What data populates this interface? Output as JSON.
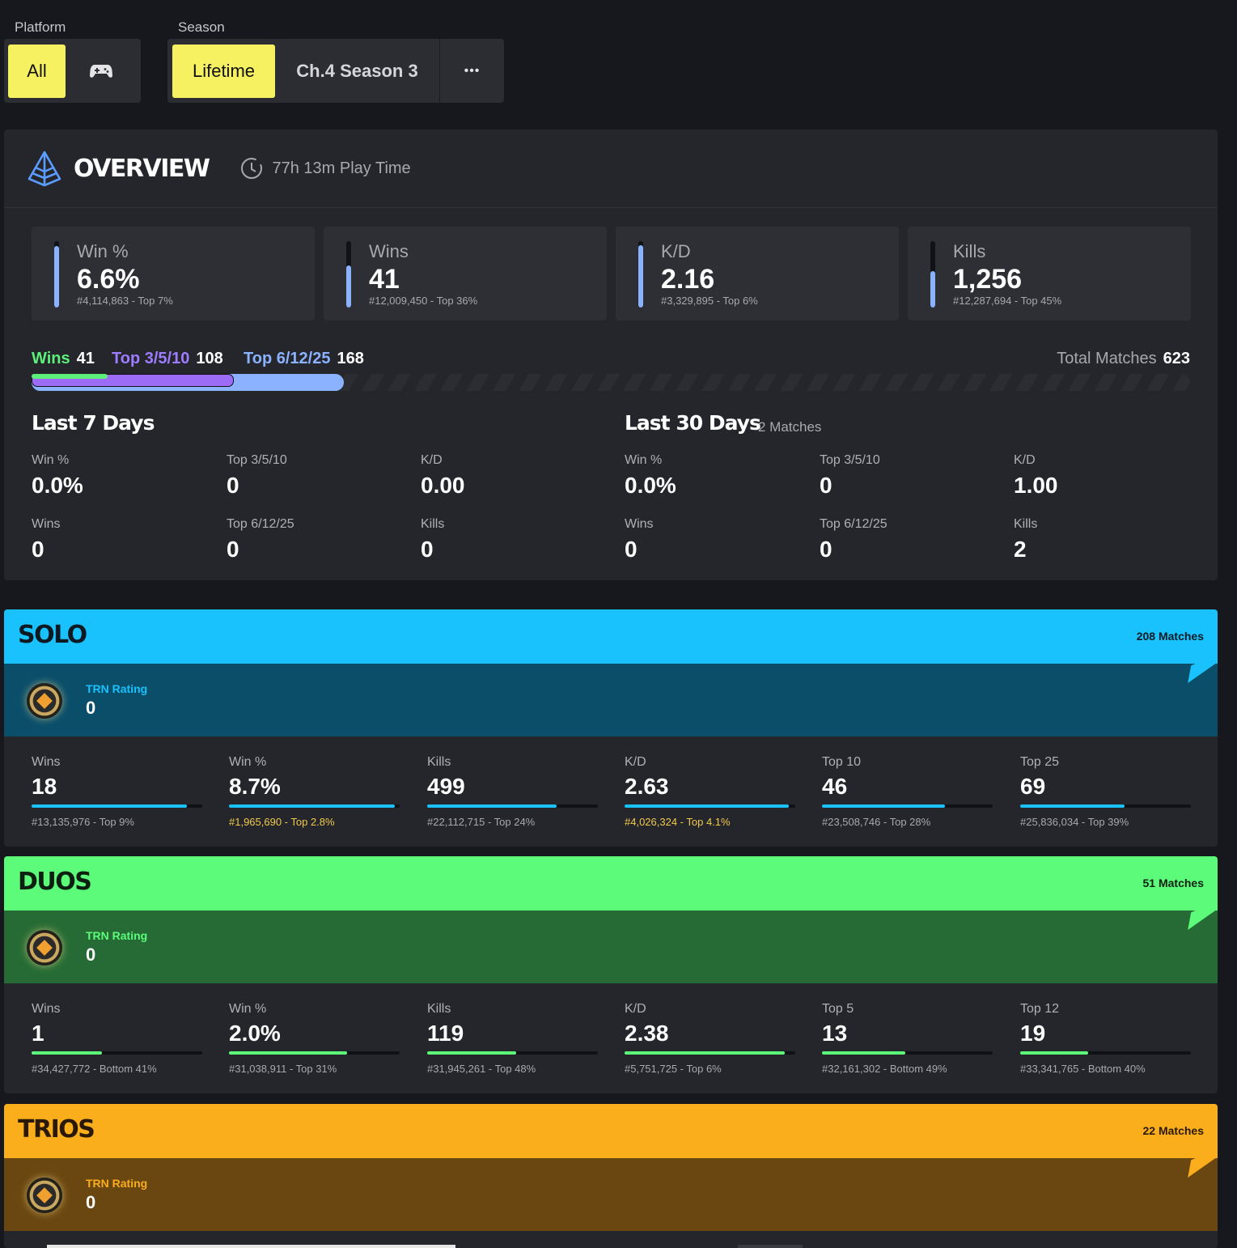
{
  "filters": {
    "platform_label": "Platform",
    "platform_all": "All",
    "platform_icon": "gamepad-icon",
    "season_label": "Season",
    "season_lifetime": "Lifetime",
    "season_current": "Ch.4 Season 3",
    "season_more": "•••"
  },
  "overview": {
    "title": "OVERVIEW",
    "playtime": "77h 13m Play Time",
    "cards": [
      {
        "label": "Win %",
        "value": "6.6%",
        "rank": "#4,114,863 - Top 7%",
        "fill": 0.93
      },
      {
        "label": "Wins",
        "value": "41",
        "rank": "#12,009,450 - Top 36%",
        "fill": 0.64
      },
      {
        "label": "K/D",
        "value": "2.16",
        "rank": "#3,329,895 - Top 6%",
        "fill": 0.94
      },
      {
        "label": "Kills",
        "value": "1,256",
        "rank": "#12,287,694 - Top 45%",
        "fill": 0.55
      }
    ],
    "placements": {
      "wins_label": "Wins",
      "wins_value": "41",
      "top3_label": "Top 3/5/10",
      "top3_value": "108",
      "top6_label": "Top 6/12/25",
      "top6_value": "168",
      "total_label": "Total Matches",
      "total_value": "623"
    },
    "last7": {
      "title": "Last 7 Days",
      "stats": [
        {
          "label": "Win %",
          "value": "0.0%"
        },
        {
          "label": "Top 3/5/10",
          "value": "0"
        },
        {
          "label": "K/D",
          "value": "0.00"
        },
        {
          "label": "Wins",
          "value": "0"
        },
        {
          "label": "Top 6/12/25",
          "value": "0"
        },
        {
          "label": "Kills",
          "value": "0"
        }
      ]
    },
    "last30": {
      "title": "Last 30 Days",
      "matches": "2 Matches",
      "stats": [
        {
          "label": "Win %",
          "value": "0.0%"
        },
        {
          "label": "Top 3/5/10",
          "value": "0"
        },
        {
          "label": "K/D",
          "value": "1.00"
        },
        {
          "label": "Wins",
          "value": "0"
        },
        {
          "label": "Top 6/12/25",
          "value": "0"
        },
        {
          "label": "Kills",
          "value": "2"
        }
      ]
    }
  },
  "modes": {
    "solo": {
      "title": "SOLO",
      "matches": "208 Matches",
      "trn_label": "TRN Rating",
      "trn_value": "0",
      "colors": {
        "head": "#19c2fc",
        "band": "#0a4e6a",
        "text": "#0b1a22",
        "accent": "#19c2fc"
      },
      "stats": [
        {
          "label": "Wins",
          "value": "18",
          "rank": "#13,135,976 - Top 9%",
          "fill": 0.91
        },
        {
          "label": "Win %",
          "value": "8.7%",
          "rank": "#1,965,690 - Top 2.8%",
          "fill": 0.97,
          "highlight": true
        },
        {
          "label": "Kills",
          "value": "499",
          "rank": "#22,112,715 - Top 24%",
          "fill": 0.76
        },
        {
          "label": "K/D",
          "value": "2.63",
          "rank": "#4,026,324 - Top 4.1%",
          "fill": 0.96,
          "highlight": true
        },
        {
          "label": "Top 10",
          "value": "46",
          "rank": "#23,508,746 - Top 28%",
          "fill": 0.72
        },
        {
          "label": "Top 25",
          "value": "69",
          "rank": "#25,836,034 - Top 39%",
          "fill": 0.61
        }
      ]
    },
    "duos": {
      "title": "DUOS",
      "matches": "51 Matches",
      "trn_label": "TRN Rating",
      "trn_value": "0",
      "colors": {
        "head": "#5cfb7a",
        "band": "#266b35",
        "text": "#0d1f10",
        "accent": "#5cfb7a"
      },
      "stats": [
        {
          "label": "Wins",
          "value": "1",
          "rank": "#34,427,772 - Bottom 41%",
          "fill": 0.41
        },
        {
          "label": "Win %",
          "value": "2.0%",
          "rank": "#31,038,911 - Top 31%",
          "fill": 0.69
        },
        {
          "label": "Kills",
          "value": "119",
          "rank": "#31,945,261 - Top 48%",
          "fill": 0.52
        },
        {
          "label": "K/D",
          "value": "2.38",
          "rank": "#5,751,725 - Top 6%",
          "fill": 0.94
        },
        {
          "label": "Top 5",
          "value": "13",
          "rank": "#32,161,302 - Bottom 49%",
          "fill": 0.49
        },
        {
          "label": "Top 12",
          "value": "19",
          "rank": "#33,341,765 - Bottom 40%",
          "fill": 0.4
        }
      ]
    },
    "trios": {
      "title": "TRIOS",
      "matches": "22 Matches",
      "trn_label": "TRN Rating",
      "trn_value": "0",
      "colors": {
        "head": "#fbae1c",
        "band": "#6a4710",
        "text": "#2a1a05",
        "accent": "#fbae1c"
      }
    }
  }
}
